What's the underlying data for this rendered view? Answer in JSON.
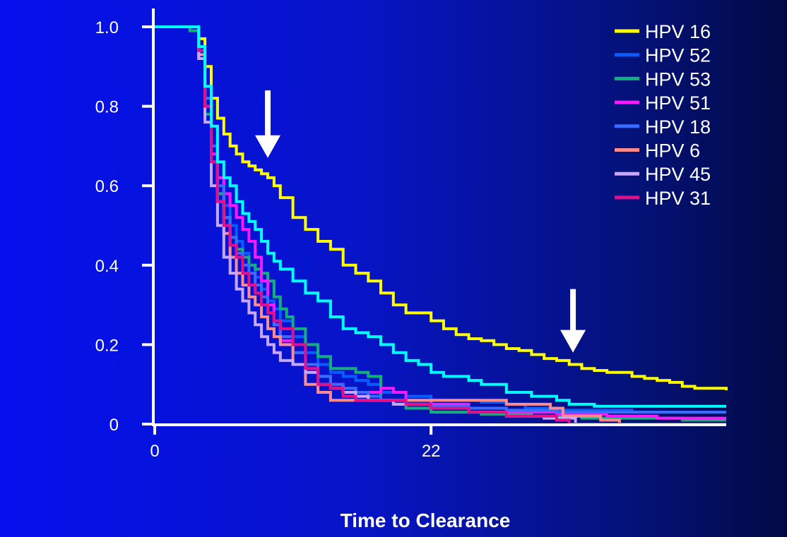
{
  "chart_data": {
    "type": "line",
    "step": true,
    "title": "",
    "xlabel": "Time to Clearance",
    "ylabel": "",
    "xlim": [
      0,
      45.5
    ],
    "ylim": [
      0,
      1.0
    ],
    "x_ticks": [
      {
        "value": 0,
        "label": "0"
      },
      {
        "value": 22,
        "label": "22"
      }
    ],
    "y_ticks": [
      {
        "value": 0,
        "label": "0"
      },
      {
        "value": 0.2,
        "label": "0.2"
      },
      {
        "value": 0.4,
        "label": "0.4"
      },
      {
        "value": 0.6,
        "label": "0.6"
      },
      {
        "value": 0.8,
        "label": "0.8"
      },
      {
        "value": 1.0,
        "label": "1.0"
      }
    ],
    "grid": false,
    "legend_position": "top-right",
    "series": [
      {
        "name": "HPV 16",
        "color": "#ffff00",
        "x": [
          0,
          3.1,
          3.5,
          4.0,
          4.5,
          5.0,
          5.5,
          6.0,
          6.5,
          7.0,
          7.5,
          8.0,
          8.5,
          9.0,
          9.5,
          10.0,
          11.0,
          12.0,
          13.0,
          14.0,
          15.0,
          16.0,
          17.0,
          18.0,
          19.0,
          20.0,
          21.0,
          22.0,
          23.0,
          24.0,
          25.0,
          26.0,
          27.0,
          28.0,
          29.0,
          30.0,
          31.0,
          32.0,
          33.0,
          34.0,
          35.0,
          36.0,
          37.0,
          38.0,
          39.0,
          40.0,
          41.0,
          42.0,
          43.0,
          44.0,
          45.0,
          45.5
        ],
        "y": [
          1.0,
          1.0,
          0.97,
          0.9,
          0.82,
          0.77,
          0.73,
          0.7,
          0.68,
          0.66,
          0.65,
          0.64,
          0.63,
          0.62,
          0.6,
          0.57,
          0.52,
          0.49,
          0.46,
          0.44,
          0.4,
          0.38,
          0.36,
          0.33,
          0.3,
          0.28,
          0.28,
          0.26,
          0.24,
          0.225,
          0.215,
          0.21,
          0.2,
          0.19,
          0.185,
          0.175,
          0.165,
          0.16,
          0.15,
          0.14,
          0.135,
          0.13,
          0.13,
          0.12,
          0.115,
          0.11,
          0.105,
          0.095,
          0.09,
          0.09,
          0.09,
          0.085
        ]
      },
      {
        "name": "HPV 52",
        "color": "#0a5cff",
        "x": [
          0,
          3.0,
          3.5,
          4.0,
          4.5,
          5.0,
          5.5,
          6.0,
          6.5,
          7.0,
          7.5,
          8.0,
          8.5,
          9.0,
          9.5,
          10.0,
          11.0,
          12.0,
          13.0,
          14.0,
          15.0,
          16.0,
          17.0,
          18.0,
          20.0,
          22.0,
          24.0,
          26.0,
          28.0,
          29.5,
          32.0,
          35.0,
          38.0,
          42.0,
          45.5
        ],
        "y": [
          1.0,
          1.0,
          0.95,
          0.82,
          0.7,
          0.62,
          0.55,
          0.5,
          0.46,
          0.43,
          0.4,
          0.37,
          0.34,
          0.31,
          0.29,
          0.26,
          0.22,
          0.18,
          0.15,
          0.13,
          0.12,
          0.11,
          0.1,
          0.08,
          0.07,
          0.06,
          0.06,
          0.055,
          0.05,
          0.04,
          0.035,
          0.035,
          0.03,
          0.03,
          0.03
        ]
      },
      {
        "name": "HPV 53",
        "color": "#12b07c",
        "x": [
          0,
          2.8,
          3.5,
          4.0,
          4.5,
          5.0,
          5.5,
          6.0,
          6.5,
          7.0,
          7.5,
          8.0,
          8.5,
          9.0,
          9.5,
          10.0,
          10.5,
          11.0,
          12.0,
          13.0,
          14.0,
          15.0,
          16.0,
          17.0,
          18.0,
          20.0,
          22.0,
          24.0,
          26.0,
          30.0,
          34.0,
          38.0,
          42.0,
          45.5
        ],
        "y": [
          1.0,
          0.99,
          0.92,
          0.78,
          0.66,
          0.58,
          0.52,
          0.47,
          0.44,
          0.42,
          0.4,
          0.39,
          0.38,
          0.36,
          0.32,
          0.29,
          0.27,
          0.24,
          0.2,
          0.17,
          0.14,
          0.14,
          0.13,
          0.12,
          0.06,
          0.04,
          0.03,
          0.03,
          0.025,
          0.02,
          0.015,
          0.015,
          0.01,
          0.01
        ]
      },
      {
        "name": "HPV 51",
        "color": "#ff18ff",
        "x": [
          0,
          3.0,
          3.5,
          4.0,
          4.5,
          5.0,
          5.5,
          6.0,
          6.5,
          7.0,
          7.5,
          8.0,
          8.5,
          9.0,
          9.5,
          10.0,
          11.0,
          12.0,
          13.0,
          14.0,
          15.0,
          16.0,
          17.0,
          18.0,
          19.0,
          20.0,
          22.0,
          25.0,
          28.0,
          32.0,
          36.0,
          40.0,
          45.5
        ],
        "y": [
          1.0,
          1.0,
          0.93,
          0.8,
          0.68,
          0.62,
          0.58,
          0.55,
          0.52,
          0.49,
          0.46,
          0.42,
          0.36,
          0.3,
          0.25,
          0.21,
          0.18,
          0.14,
          0.12,
          0.1,
          0.08,
          0.08,
          0.08,
          0.09,
          0.08,
          0.06,
          0.05,
          0.04,
          0.03,
          0.025,
          0.02,
          0.015,
          0.015
        ]
      },
      {
        "name": "HPV 18",
        "color": "#3a6cff",
        "x": [
          0,
          3.0,
          3.5,
          4.0,
          4.5,
          5.0,
          5.5,
          6.0,
          6.5,
          7.0,
          7.5,
          8.0,
          8.5,
          9.0,
          9.5,
          10.0,
          11.0,
          12.0,
          13.0,
          14.0,
          15.0,
          16.0,
          17.0,
          18.0,
          20.0,
          22.0,
          25.0,
          28.0,
          32.0,
          36.0,
          40.0,
          45.5
        ],
        "y": [
          1.0,
          1.0,
          0.95,
          0.82,
          0.7,
          0.6,
          0.52,
          0.47,
          0.43,
          0.4,
          0.38,
          0.35,
          0.32,
          0.28,
          0.25,
          0.22,
          0.18,
          0.15,
          0.12,
          0.1,
          0.09,
          0.08,
          0.07,
          0.06,
          0.05,
          0.045,
          0.04,
          0.035,
          0.03,
          0.03,
          0.03,
          0.03
        ]
      },
      {
        "name": "HPV 6",
        "color": "#ff8c8c",
        "x": [
          0,
          3.0,
          3.5,
          4.0,
          4.5,
          5.0,
          5.5,
          6.0,
          6.5,
          7.0,
          7.5,
          8.0,
          8.5,
          9.0,
          9.5,
          10.0,
          11.0,
          12.0,
          13.0,
          14.0,
          15.0,
          16.0,
          17.0,
          18.0,
          20.0,
          22.0,
          25.0,
          28.0,
          31.5,
          32.5,
          35.5,
          37.0,
          45.5
        ],
        "y": [
          1.0,
          1.0,
          0.93,
          0.8,
          0.66,
          0.56,
          0.48,
          0.42,
          0.38,
          0.35,
          0.32,
          0.3,
          0.27,
          0.24,
          0.22,
          0.2,
          0.15,
          0.1,
          0.08,
          0.06,
          0.06,
          0.06,
          0.06,
          0.06,
          0.06,
          0.06,
          0.06,
          0.05,
          0.04,
          0.02,
          0.01,
          0.0,
          0.0
        ]
      },
      {
        "name": "HPV 45",
        "color": "#c8a8ff",
        "x": [
          0,
          3.0,
          3.5,
          4.0,
          4.5,
          5.0,
          5.5,
          6.0,
          6.5,
          7.0,
          7.5,
          8.0,
          8.5,
          9.0,
          9.5,
          10.0,
          11.0,
          12.0,
          13.0,
          14.0,
          15.0,
          16.0,
          17.0,
          18.0,
          19.0,
          20.0,
          22.0,
          25.0,
          28.0,
          31.0,
          33.5,
          45.5
        ],
        "y": [
          1.0,
          1.0,
          0.92,
          0.76,
          0.6,
          0.5,
          0.42,
          0.38,
          0.34,
          0.31,
          0.28,
          0.25,
          0.22,
          0.2,
          0.18,
          0.16,
          0.15,
          0.13,
          0.1,
          0.09,
          0.08,
          0.07,
          0.06,
          0.06,
          0.05,
          0.05,
          0.04,
          0.03,
          0.02,
          0.015,
          0.0,
          0.0
        ]
      },
      {
        "name": "HPV 31",
        "color": "#e0108c",
        "x": [
          0,
          3.0,
          3.5,
          4.0,
          4.5,
          5.0,
          5.5,
          6.0,
          6.5,
          7.0,
          7.5,
          8.0,
          8.5,
          9.0,
          9.5,
          10.0,
          11.0,
          12.0,
          13.0,
          14.0,
          15.0,
          16.0,
          17.0,
          18.0,
          20.0,
          22.0,
          25.0,
          28.0,
          32.0,
          33.0,
          45.5
        ],
        "y": [
          1.0,
          1.0,
          0.94,
          0.8,
          0.66,
          0.56,
          0.5,
          0.45,
          0.42,
          0.38,
          0.35,
          0.33,
          0.3,
          0.28,
          0.26,
          0.24,
          0.2,
          0.14,
          0.1,
          0.09,
          0.07,
          0.06,
          0.06,
          0.06,
          0.05,
          0.04,
          0.03,
          0.02,
          0.01,
          0.0,
          0.0
        ]
      },
      {
        "name": "",
        "color": "#00ffff",
        "x": [
          0,
          3.1,
          3.5,
          4.0,
          4.5,
          5.0,
          5.5,
          6.0,
          6.5,
          7.0,
          7.5,
          8.0,
          8.5,
          9.0,
          9.5,
          10.0,
          11.0,
          12.0,
          13.0,
          14.0,
          15.0,
          16.0,
          17.0,
          18.0,
          19.0,
          20.0,
          21.0,
          22.0,
          23.0,
          24.0,
          25.0,
          26.0,
          28.0,
          30.0,
          32.0,
          33.0,
          35.0,
          38.0,
          42.0,
          45.5
        ],
        "y": [
          1.0,
          1.0,
          0.95,
          0.85,
          0.75,
          0.66,
          0.62,
          0.6,
          0.56,
          0.53,
          0.51,
          0.49,
          0.46,
          0.43,
          0.41,
          0.39,
          0.36,
          0.33,
          0.31,
          0.27,
          0.24,
          0.23,
          0.22,
          0.2,
          0.18,
          0.16,
          0.15,
          0.13,
          0.12,
          0.12,
          0.11,
          0.1,
          0.08,
          0.07,
          0.06,
          0.05,
          0.045,
          0.045,
          0.045,
          0.045
        ]
      }
    ],
    "annotations": [
      {
        "type": "arrow-down",
        "color": "#ffffff",
        "x": 9.0,
        "y_top": 0.84,
        "y_bottom": 0.67
      },
      {
        "type": "arrow-down",
        "color": "#ffffff",
        "x": 33.3,
        "y_top": 0.34,
        "y_bottom": 0.18
      }
    ]
  }
}
